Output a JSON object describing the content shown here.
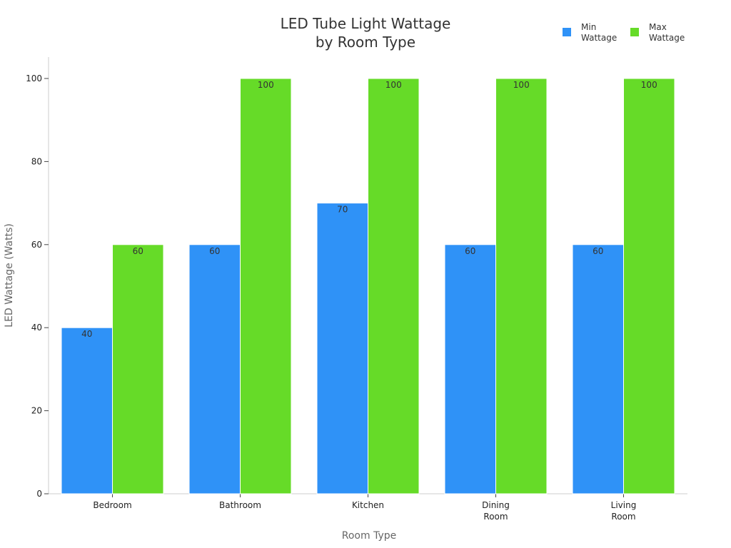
{
  "chart_data": {
    "type": "bar",
    "title": [
      "LED Tube Light Wattage",
      "by Room Type"
    ],
    "xlabel": "Room Type",
    "ylabel": "LED Wattage (Watts)",
    "ylim": [
      0,
      100
    ],
    "yticks": [
      0,
      20,
      40,
      60,
      80,
      100
    ],
    "categories": [
      [
        "Bedroom"
      ],
      [
        "Bathroom"
      ],
      [
        "Kitchen"
      ],
      [
        "Dining",
        "Room"
      ],
      [
        "Living",
        "Room"
      ]
    ],
    "series": [
      {
        "name": [
          "Min",
          "Wattage"
        ],
        "color": "#2f92f7",
        "values": [
          40,
          60,
          70,
          60,
          60
        ]
      },
      {
        "name": [
          "Max",
          "Wattage"
        ],
        "color": "#66db28",
        "values": [
          60,
          100,
          100,
          100,
          100
        ]
      }
    ],
    "legend_position": "top-right",
    "grid": false
  }
}
